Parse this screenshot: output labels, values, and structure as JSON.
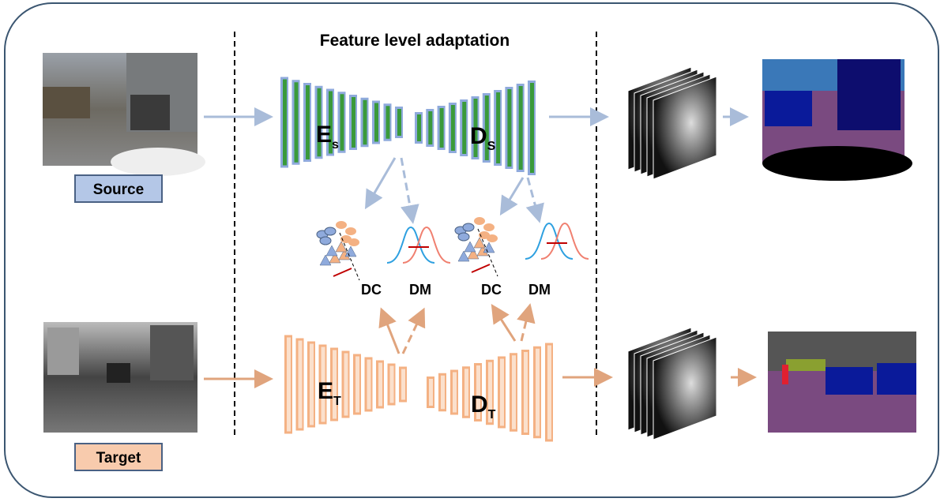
{
  "title": "Feature level adaptation",
  "inputs": [
    {
      "label": "Source"
    },
    {
      "label": "Target"
    }
  ],
  "networks": [
    {
      "letter": "E",
      "sub": "s"
    },
    {
      "letter": "D",
      "sub": "S"
    },
    {
      "letter": "E",
      "sub": "T"
    },
    {
      "letter": "D",
      "sub": "T"
    }
  ],
  "losses": [
    "DC",
    "DM",
    "DC",
    "DM"
  ]
}
